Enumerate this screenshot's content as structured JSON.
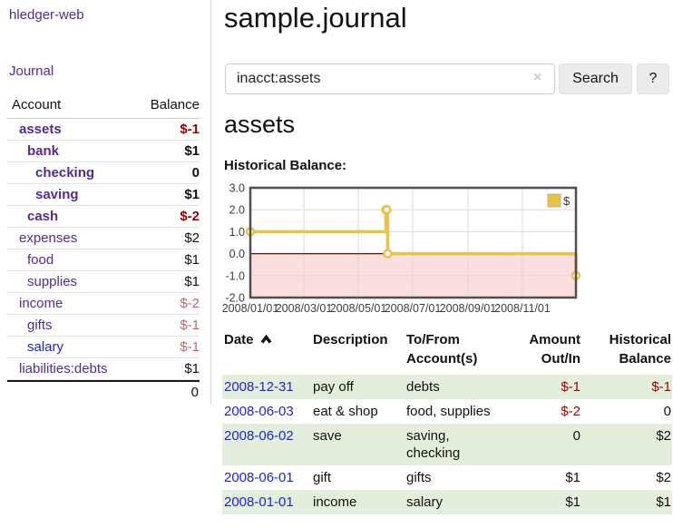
{
  "app": {
    "title": "hledger-web"
  },
  "colors": {
    "link_purple": "#542a96",
    "link_blue": "#2222cc",
    "negative_bold_red": "#a40000",
    "negative_rose": "#bb6a6a",
    "row_stripe_green": "#e3efdc",
    "chart_gold": "#E8C24A",
    "chart_negative_fill": "#fbdede",
    "chart_zero_line": "#8b0000"
  },
  "sidebar": {
    "nav": {
      "journal": "Journal"
    },
    "table": {
      "account_header": "Account",
      "balance_header": "Balance",
      "accounts": [
        {
          "name": "assets",
          "balance": "$-1",
          "depth": 1,
          "bold": true,
          "neg": true,
          "unvisited": false
        },
        {
          "name": "bank",
          "balance": "$1",
          "depth": 2,
          "bold": true,
          "neg": false,
          "unvisited": false
        },
        {
          "name": "checking",
          "balance": "0",
          "depth": 3,
          "bold": true,
          "neg": false,
          "unvisited": false
        },
        {
          "name": "saving",
          "balance": "$1",
          "depth": 3,
          "bold": true,
          "neg": false,
          "unvisited": false
        },
        {
          "name": "cash",
          "balance": "$-2",
          "depth": 2,
          "bold": true,
          "neg": true,
          "unvisited": false
        },
        {
          "name": "expenses",
          "balance": "$2",
          "depth": 1,
          "bold": false,
          "neg": false,
          "unvisited": false
        },
        {
          "name": "food",
          "balance": "$1",
          "depth": 2,
          "bold": false,
          "neg": false,
          "unvisited": false
        },
        {
          "name": "supplies",
          "balance": "$1",
          "depth": 2,
          "bold": false,
          "neg": false,
          "unvisited": false
        },
        {
          "name": "income",
          "balance": "$-2",
          "depth": 1,
          "bold": false,
          "neg": true,
          "unvisited": false
        },
        {
          "name": "gifts",
          "balance": "$-1",
          "depth": 2,
          "bold": false,
          "neg": true,
          "unvisited": false
        },
        {
          "name": "salary",
          "balance": "$-1",
          "depth": 2,
          "bold": false,
          "neg": true,
          "unvisited": true
        },
        {
          "name": "liabilities:debts",
          "balance": "$1",
          "depth": 1,
          "bold": false,
          "neg": false,
          "unvisited": false
        }
      ],
      "total": "0"
    }
  },
  "header": {
    "title": "sample.journal"
  },
  "search": {
    "value": "inacct:assets",
    "clear_icon": "×",
    "button": "Search",
    "help_button": "?"
  },
  "account_page": {
    "title": "assets",
    "chart_heading": "Historical Balance:"
  },
  "chart_data": {
    "type": "line",
    "title": "Historical Balance",
    "line_style": "step",
    "legend": [
      {
        "label": "$",
        "color": "#EDC240"
      }
    ],
    "legend_position": "top-right",
    "grid": true,
    "ylim": [
      -2.0,
      3.0
    ],
    "y_ticks": [
      "3.0",
      "2.0",
      "1.0",
      "0.0",
      "-1.0",
      "-2.0"
    ],
    "x_range": [
      "2008-01-01",
      "2008-12-31"
    ],
    "x_ticks": [
      "2008/01/01",
      "2008/03/01",
      "2008/05/01",
      "2008/07/01",
      "2008/09/01",
      "2008/11/01"
    ],
    "series": [
      {
        "name": "$",
        "color": "#E8C24A",
        "points": [
          [
            "2008-01-01",
            1
          ],
          [
            "2008-06-01",
            2
          ],
          [
            "2008-06-02",
            2
          ],
          [
            "2008-06-03",
            0
          ],
          [
            "2008-12-31",
            -1
          ]
        ]
      }
    ],
    "negative_region_color": "#fbdede",
    "zero_line_color": "#8b0000"
  },
  "register": {
    "columns": {
      "date": "Date",
      "description": "Description",
      "accounts": "To/From Account(s)",
      "amount": "Amount Out/In",
      "balance": "Historical Balance"
    },
    "rows": [
      {
        "date": "2008-12-31",
        "description": "pay off",
        "accounts": "debts",
        "amount": "$-1",
        "amount_neg": true,
        "balance": "$-1",
        "balance_neg": true
      },
      {
        "date": "2008-06-03",
        "description": "eat & shop",
        "accounts": "food, supplies",
        "amount": "$-2",
        "amount_neg": true,
        "balance": "0",
        "balance_neg": false
      },
      {
        "date": "2008-06-02",
        "description": "save",
        "accounts": "saving, checking",
        "amount": "0",
        "amount_neg": false,
        "balance": "$2",
        "balance_neg": false
      },
      {
        "date": "2008-06-01",
        "description": "gift",
        "accounts": "gifts",
        "amount": "$1",
        "amount_neg": false,
        "balance": "$2",
        "balance_neg": false
      },
      {
        "date": "2008-01-01",
        "description": "income",
        "accounts": "salary",
        "amount": "$1",
        "amount_neg": false,
        "balance": "$1",
        "balance_neg": false
      }
    ]
  }
}
